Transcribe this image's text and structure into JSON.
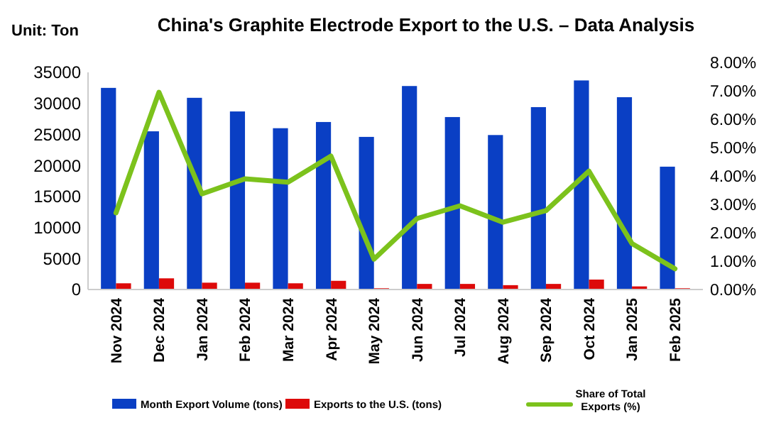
{
  "chart_data": {
    "type": "bar",
    "title": "China's Graphite Electrode Export to the U.S. – Data Analysis",
    "annotations": [
      "Unit: Ton"
    ],
    "categories": [
      "Nov 2024",
      "Dec 2024",
      "Jan 2024",
      "Feb 2024",
      "Mar 2024",
      "Apr 2024",
      "May 2024",
      "Jun 2024",
      "Jul 2024",
      "Aug 2024",
      "Sep 2024",
      "Oct 2024",
      "Jan 2025",
      "Feb 2025"
    ],
    "series": [
      {
        "name": "Month Export Volume (tons)",
        "color": "#0a3fc4",
        "values": [
          32500,
          25500,
          30900,
          28700,
          26000,
          27000,
          24600,
          32800,
          27800,
          24900,
          29400,
          33700,
          31000,
          19800
        ]
      },
      {
        "name": "Exports to the U.S. (tons)",
        "color": "#dd0a0a",
        "values": [
          1000,
          1800,
          1100,
          1100,
          1000,
          1400,
          200,
          900,
          900,
          700,
          900,
          1600,
          500,
          200
        ]
      },
      {
        "name": "Share of Total Exports (%)",
        "type": "line",
        "axis": "y2",
        "color": "#7cc21c",
        "values": [
          2.7,
          6.95,
          3.37,
          3.9,
          3.78,
          4.7,
          1.07,
          2.5,
          2.95,
          2.37,
          2.78,
          4.17,
          1.62,
          0.73
        ]
      }
    ],
    "ylim": [
      0,
      35000
    ],
    "yticks": [
      0,
      5000,
      10000,
      15000,
      20000,
      25000,
      30000,
      35000
    ],
    "y2lim": [
      0,
      8
    ],
    "y2ticks": [
      {
        "value": 0,
        "label": "0.00%"
      },
      {
        "value": 1,
        "label": "1.00%"
      },
      {
        "value": 2,
        "label": "2.00%"
      },
      {
        "value": 3,
        "label": "3.00%"
      },
      {
        "value": 4,
        "label": "4.00%"
      },
      {
        "value": 5,
        "label": "5.00%"
      },
      {
        "value": 6,
        "label": "6.00%"
      },
      {
        "value": 7,
        "label": "7.00%"
      },
      {
        "value": 8,
        "label": "8.00%"
      }
    ],
    "legend": "bottom",
    "grid": false
  }
}
